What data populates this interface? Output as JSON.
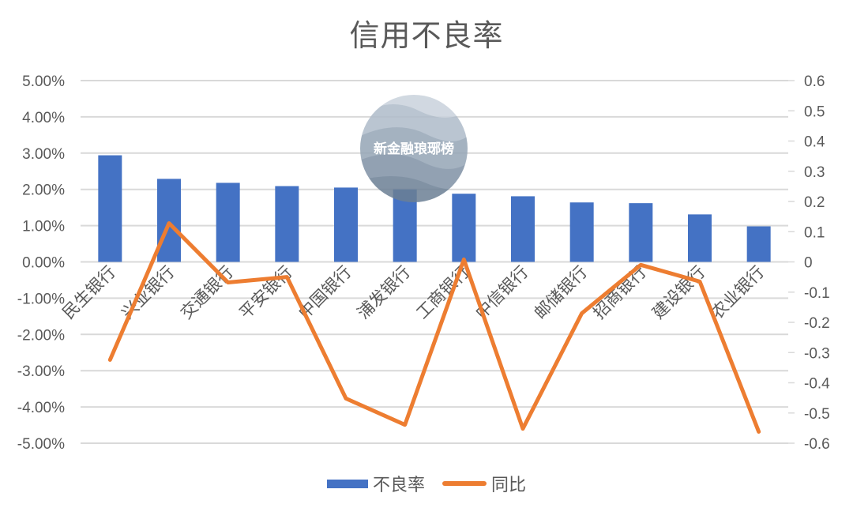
{
  "chart_data": {
    "type": "bar+line",
    "title": "信用不良率",
    "categories": [
      "民生银行",
      "兴业银行",
      "交通银行",
      "平安银行",
      "中国银行",
      "浦发银行",
      "工商银行",
      "中信银行",
      "邮储银行",
      "招商银行",
      "建设银行",
      "农业银行"
    ],
    "series": [
      {
        "name": "不良率",
        "type": "bar",
        "axis": "left",
        "color": "#4472C4",
        "values": [
          2.94,
          2.29,
          2.18,
          2.09,
          2.05,
          2.0,
          1.88,
          1.81,
          1.64,
          1.62,
          1.31,
          0.98
        ],
        "unit": "%"
      },
      {
        "name": "同比",
        "type": "line",
        "axis": "right",
        "color": "#ED7D31",
        "values": [
          -0.324,
          0.128,
          -0.068,
          -0.05,
          -0.452,
          -0.539,
          0.008,
          -0.552,
          -0.17,
          -0.01,
          -0.065,
          -0.562
        ]
      }
    ],
    "left_axis": {
      "ylim": [
        -5,
        5
      ],
      "ticks": [
        "5.00%",
        "4.00%",
        "3.00%",
        "2.00%",
        "1.00%",
        "0.00%",
        "-1.00%",
        "-2.00%",
        "-3.00%",
        "-4.00%",
        "-5.00%"
      ]
    },
    "right_axis": {
      "ylim": [
        -0.6,
        0.6
      ],
      "ticks": [
        "0.6",
        "0.5",
        "0.4",
        "0.3",
        "0.2",
        "0.1",
        "0",
        "-0.1",
        "-0.2",
        "-0.3",
        "-0.4",
        "-0.5",
        "-0.6"
      ]
    },
    "grid": true,
    "legend_position": "bottom",
    "xlabel": "",
    "ylabel": ""
  },
  "watermark": {
    "text": "新金融琅琊榜"
  },
  "legend": {
    "bar_label": "不良率",
    "line_label": "同比"
  }
}
